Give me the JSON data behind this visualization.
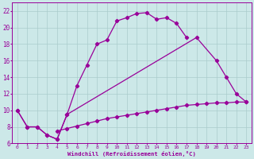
{
  "xlabel": "Windchill (Refroidissement éolien,°C)",
  "bg_color": "#cce8e8",
  "grid_color": "#aacccc",
  "line_color": "#990099",
  "xlim": [
    -0.5,
    23.5
  ],
  "ylim": [
    6,
    23
  ],
  "xticks": [
    0,
    1,
    2,
    3,
    4,
    5,
    6,
    7,
    8,
    9,
    10,
    11,
    12,
    13,
    14,
    15,
    16,
    17,
    18,
    19,
    20,
    21,
    22,
    23
  ],
  "yticks": [
    6,
    8,
    10,
    12,
    14,
    16,
    18,
    20,
    22
  ],
  "line1_x": [
    0,
    1,
    2,
    3,
    4,
    5,
    6,
    7,
    8,
    9,
    10,
    11,
    12,
    13,
    14,
    15,
    16,
    17
  ],
  "line1_y": [
    10,
    8,
    8,
    7,
    6.5,
    9.5,
    13,
    15.5,
    18,
    18.5,
    20.8,
    21.2,
    21.7,
    21.8,
    21.0,
    21.2,
    20.5,
    18.8
  ],
  "line2_x": [
    0,
    1,
    2,
    3,
    4,
    5,
    18,
    20,
    21,
    22,
    23
  ],
  "line2_y": [
    10,
    8,
    8,
    7,
    6.5,
    9.5,
    18.8,
    16.0,
    14.0,
    12.0,
    11.0
  ],
  "line3_x": [
    4,
    5,
    6,
    7,
    8,
    9,
    10,
    11,
    12,
    13,
    14,
    15,
    16,
    17,
    18,
    19,
    20,
    21,
    22,
    23
  ],
  "line3_y": [
    7.5,
    7.8,
    8.1,
    8.4,
    8.7,
    9.0,
    9.2,
    9.4,
    9.6,
    9.8,
    10.0,
    10.2,
    10.4,
    10.6,
    10.7,
    10.8,
    10.9,
    10.9,
    11.0,
    11.0
  ]
}
